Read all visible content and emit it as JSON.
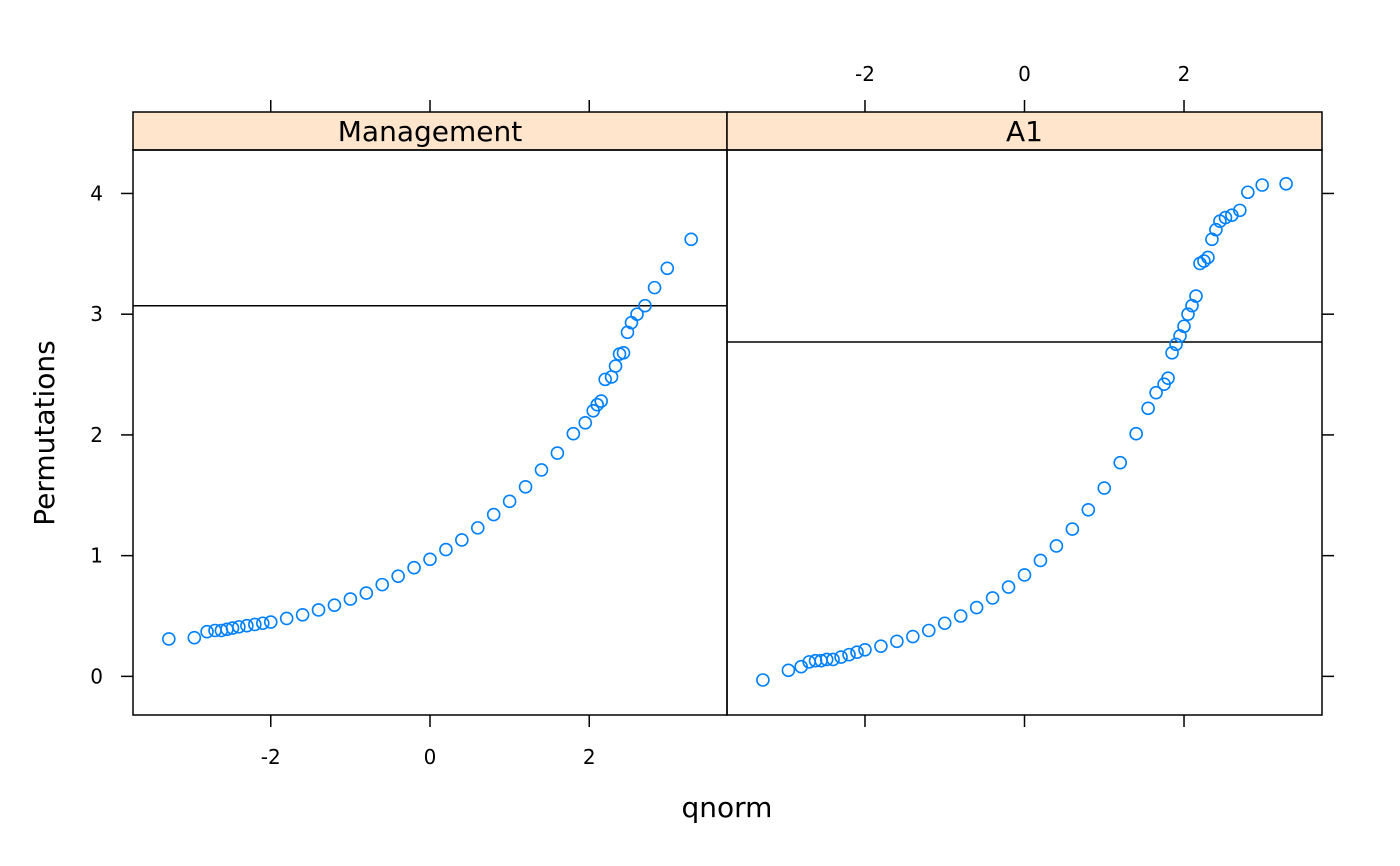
{
  "chart_data": {
    "type": "scatter",
    "xlabel": "qnorm",
    "ylabel": "Permutations",
    "xlim": [
      -3.73,
      3.73
    ],
    "ylim": [
      -0.32,
      4.36
    ],
    "x_ticks": [
      -2,
      0,
      2
    ],
    "y_ticks": [
      0,
      1,
      2,
      3,
      4
    ],
    "x_tick_labels": [
      "-2",
      "0",
      "2"
    ],
    "y_tick_labels": [
      "0",
      "1",
      "2",
      "3",
      "4"
    ],
    "grid": false,
    "point_color": "#0080ff",
    "strip_color": "#ffe5cc",
    "panels": [
      {
        "name": "Management",
        "reference_line_y": 3.07,
        "points": [
          [
            -3.28,
            0.31
          ],
          [
            -2.96,
            0.32
          ],
          [
            -2.8,
            0.37
          ],
          [
            -2.7,
            0.38
          ],
          [
            -2.62,
            0.38
          ],
          [
            -2.55,
            0.39
          ],
          [
            -2.48,
            0.4
          ],
          [
            -2.4,
            0.41
          ],
          [
            -2.3,
            0.42
          ],
          [
            -2.2,
            0.43
          ],
          [
            -2.1,
            0.44
          ],
          [
            -2.0,
            0.45
          ],
          [
            -1.8,
            0.48
          ],
          [
            -1.6,
            0.51
          ],
          [
            -1.4,
            0.55
          ],
          [
            -1.2,
            0.59
          ],
          [
            -1.0,
            0.64
          ],
          [
            -0.8,
            0.69
          ],
          [
            -0.6,
            0.76
          ],
          [
            -0.4,
            0.83
          ],
          [
            -0.2,
            0.9
          ],
          [
            0.0,
            0.97
          ],
          [
            0.2,
            1.05
          ],
          [
            0.4,
            1.13
          ],
          [
            0.6,
            1.23
          ],
          [
            0.8,
            1.34
          ],
          [
            1.0,
            1.45
          ],
          [
            1.2,
            1.57
          ],
          [
            1.4,
            1.71
          ],
          [
            1.6,
            1.85
          ],
          [
            1.8,
            2.01
          ],
          [
            1.95,
            2.1
          ],
          [
            2.05,
            2.2
          ],
          [
            2.1,
            2.25
          ],
          [
            2.15,
            2.28
          ],
          [
            2.2,
            2.46
          ],
          [
            2.28,
            2.48
          ],
          [
            2.33,
            2.57
          ],
          [
            2.38,
            2.67
          ],
          [
            2.43,
            2.68
          ],
          [
            2.48,
            2.85
          ],
          [
            2.53,
            2.93
          ],
          [
            2.6,
            3.0
          ],
          [
            2.7,
            3.07
          ],
          [
            2.82,
            3.22
          ],
          [
            2.98,
            3.38
          ],
          [
            3.28,
            3.62
          ]
        ]
      },
      {
        "name": "A1",
        "reference_line_y": 2.77,
        "points": [
          [
            -3.28,
            -0.03
          ],
          [
            -2.96,
            0.05
          ],
          [
            -2.8,
            0.08
          ],
          [
            -2.7,
            0.12
          ],
          [
            -2.62,
            0.13
          ],
          [
            -2.55,
            0.13
          ],
          [
            -2.48,
            0.14
          ],
          [
            -2.4,
            0.14
          ],
          [
            -2.3,
            0.16
          ],
          [
            -2.2,
            0.18
          ],
          [
            -2.1,
            0.2
          ],
          [
            -2.0,
            0.22
          ],
          [
            -1.8,
            0.25
          ],
          [
            -1.6,
            0.29
          ],
          [
            -1.4,
            0.33
          ],
          [
            -1.2,
            0.38
          ],
          [
            -1.0,
            0.44
          ],
          [
            -0.8,
            0.5
          ],
          [
            -0.6,
            0.57
          ],
          [
            -0.4,
            0.65
          ],
          [
            -0.2,
            0.74
          ],
          [
            0.0,
            0.84
          ],
          [
            0.2,
            0.96
          ],
          [
            0.4,
            1.08
          ],
          [
            0.6,
            1.22
          ],
          [
            0.8,
            1.38
          ],
          [
            1.0,
            1.56
          ],
          [
            1.2,
            1.77
          ],
          [
            1.4,
            2.01
          ],
          [
            1.55,
            2.22
          ],
          [
            1.65,
            2.35
          ],
          [
            1.75,
            2.42
          ],
          [
            1.8,
            2.47
          ],
          [
            1.85,
            2.68
          ],
          [
            1.9,
            2.75
          ],
          [
            1.95,
            2.82
          ],
          [
            2.0,
            2.9
          ],
          [
            2.05,
            3.0
          ],
          [
            2.1,
            3.07
          ],
          [
            2.15,
            3.15
          ],
          [
            2.2,
            3.42
          ],
          [
            2.25,
            3.44
          ],
          [
            2.3,
            3.47
          ],
          [
            2.35,
            3.62
          ],
          [
            2.4,
            3.7
          ],
          [
            2.45,
            3.77
          ],
          [
            2.52,
            3.8
          ],
          [
            2.6,
            3.82
          ],
          [
            2.7,
            3.86
          ],
          [
            2.8,
            4.01
          ],
          [
            2.98,
            4.07
          ],
          [
            3.28,
            4.08
          ]
        ]
      }
    ]
  }
}
